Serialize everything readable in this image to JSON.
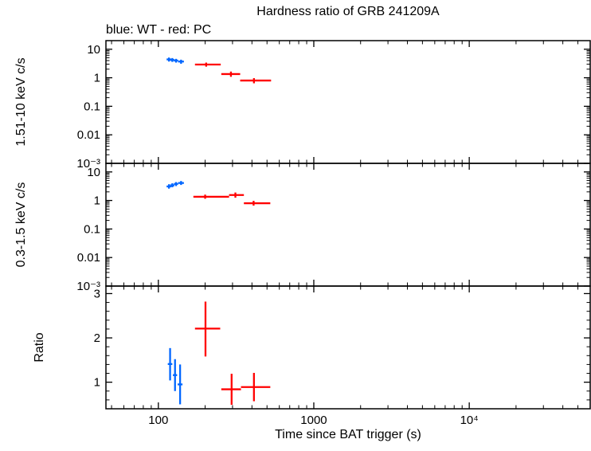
{
  "title": "Hardness ratio of GRB 241209A",
  "legend": "blue: WT - red: PC",
  "xlabel": "Time since BAT trigger (s)",
  "colors": {
    "wt": "#0066ff",
    "pc": "#ff0000",
    "axis": "#000000"
  },
  "x_axis": {
    "scale": "log",
    "lim": [
      46,
      60000
    ],
    "ticks": [
      {
        "v": 100,
        "label": "100"
      },
      {
        "v": 1000,
        "label": "1000"
      },
      {
        "v": 10000,
        "label": "10⁴"
      }
    ]
  },
  "chart_data": [
    {
      "type": "scatter",
      "band": "hard",
      "ylabel": "1.51-10 keV c/s",
      "yscale": "log",
      "ylim": [
        0.001,
        20
      ],
      "yticks": [
        {
          "v": 10,
          "label": "10"
        },
        {
          "v": 1,
          "label": "1"
        },
        {
          "v": 0.1,
          "label": "0.1"
        },
        {
          "v": 0.01,
          "label": "0.01"
        },
        {
          "v": 0.001,
          "label": "10⁻³"
        }
      ],
      "series": [
        {
          "name": "WT",
          "mode": "wt",
          "points": [
            {
              "t": 117,
              "tlo": 113,
              "thi": 121,
              "v": 4.4,
              "vlo": 3.7,
              "vhi": 5.1
            },
            {
              "t": 123,
              "tlo": 119,
              "thi": 127,
              "v": 4.2,
              "vlo": 3.6,
              "vhi": 4.9
            },
            {
              "t": 130,
              "tlo": 126,
              "thi": 134,
              "v": 4.0,
              "vlo": 3.4,
              "vhi": 4.6
            },
            {
              "t": 140,
              "tlo": 134,
              "thi": 146,
              "v": 3.7,
              "vlo": 3.1,
              "vhi": 4.3
            }
          ]
        },
        {
          "name": "PC",
          "mode": "pc",
          "points": [
            {
              "t": 203,
              "tlo": 172,
              "thi": 252,
              "v": 2.9,
              "vlo": 2.45,
              "vhi": 3.4
            },
            {
              "t": 293,
              "tlo": 254,
              "thi": 336,
              "v": 1.35,
              "vlo": 1.08,
              "vhi": 1.65
            },
            {
              "t": 412,
              "tlo": 336,
              "thi": 531,
              "v": 0.8,
              "vlo": 0.64,
              "vhi": 0.97
            }
          ]
        }
      ]
    },
    {
      "type": "scatter",
      "band": "soft",
      "ylabel": "0.3-1.5 keV c/s",
      "yscale": "log",
      "ylim": [
        0.001,
        20
      ],
      "yticks": [
        {
          "v": 10,
          "label": "10"
        },
        {
          "v": 1,
          "label": "1"
        },
        {
          "v": 0.1,
          "label": "0.1"
        },
        {
          "v": 0.01,
          "label": "0.01"
        },
        {
          "v": 0.001,
          "label": "10⁻³"
        }
      ],
      "series": [
        {
          "name": "WT",
          "mode": "wt",
          "points": [
            {
              "t": 117,
              "tlo": 113,
              "thi": 121,
              "v": 3.1,
              "vlo": 2.6,
              "vhi": 3.7
            },
            {
              "t": 123,
              "tlo": 119,
              "thi": 127,
              "v": 3.4,
              "vlo": 2.9,
              "vhi": 4.0
            },
            {
              "t": 130,
              "tlo": 126,
              "thi": 134,
              "v": 3.8,
              "vlo": 3.2,
              "vhi": 4.4
            },
            {
              "t": 140,
              "tlo": 134,
              "thi": 146,
              "v": 4.1,
              "vlo": 3.5,
              "vhi": 4.8
            }
          ]
        },
        {
          "name": "PC",
          "mode": "pc",
          "points": [
            {
              "t": 200,
              "tlo": 168,
              "thi": 285,
              "v": 1.35,
              "vlo": 1.15,
              "vhi": 1.6
            },
            {
              "t": 313,
              "tlo": 285,
              "thi": 355,
              "v": 1.55,
              "vlo": 1.25,
              "vhi": 1.9
            },
            {
              "t": 410,
              "tlo": 355,
              "thi": 525,
              "v": 0.8,
              "vlo": 0.66,
              "vhi": 0.97
            }
          ]
        }
      ]
    },
    {
      "type": "scatter",
      "band": "ratio",
      "ylabel": "Ratio",
      "yscale": "linear",
      "ylim": [
        0.4,
        3.17
      ],
      "yticks": [
        {
          "v": 3,
          "label": "3"
        },
        {
          "v": 2,
          "label": "2"
        },
        {
          "v": 1,
          "label": "1"
        }
      ],
      "series": [
        {
          "name": "WT",
          "mode": "wt",
          "points": [
            {
              "t": 119,
              "tlo": 115,
              "thi": 123,
              "v": 1.41,
              "vlo": 1.04,
              "vhi": 1.77
            },
            {
              "t": 128,
              "tlo": 124,
              "thi": 132,
              "v": 1.16,
              "vlo": 0.8,
              "vhi": 1.52
            },
            {
              "t": 138,
              "tlo": 133,
              "thi": 143,
              "v": 0.95,
              "vlo": 0.5,
              "vhi": 1.4
            }
          ]
        },
        {
          "name": "PC",
          "mode": "pc",
          "points": [
            {
              "t": 201,
              "tlo": 172,
              "thi": 250,
              "v": 2.21,
              "vlo": 1.58,
              "vhi": 2.82
            },
            {
              "t": 296,
              "tlo": 254,
              "thi": 340,
              "v": 0.84,
              "vlo": 0.49,
              "vhi": 1.19
            },
            {
              "t": 412,
              "tlo": 340,
              "thi": 525,
              "v": 0.89,
              "vlo": 0.57,
              "vhi": 1.21
            }
          ]
        }
      ]
    }
  ]
}
